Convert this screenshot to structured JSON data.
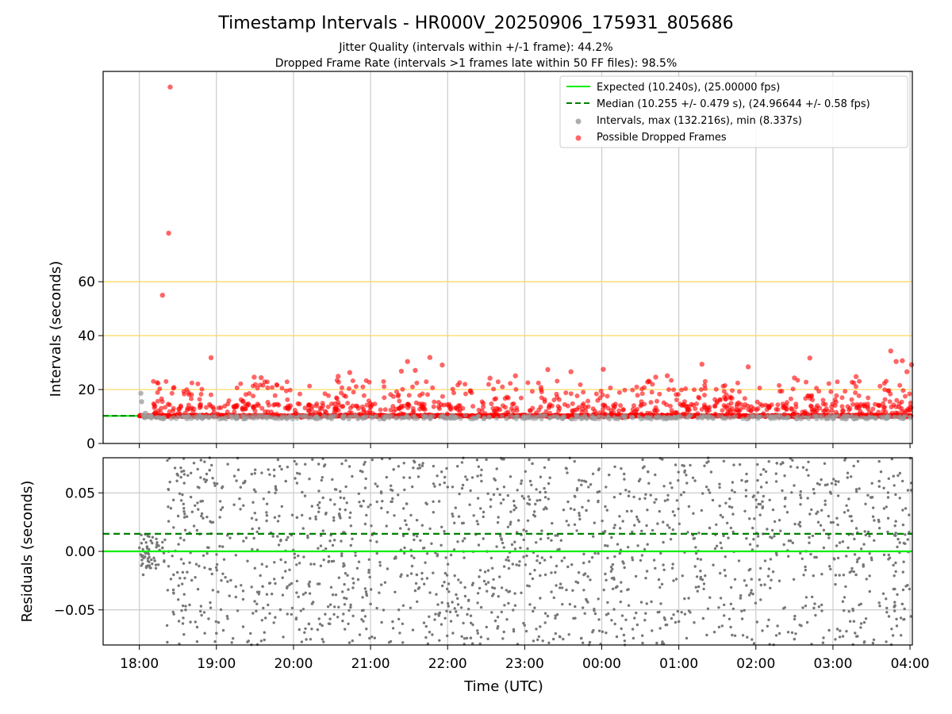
{
  "chart_data": [
    {
      "type": "scatter",
      "title": "Timestamp Intervals - HR000V_20250906_175931_805686",
      "subtitle_lines": [
        "Jitter Quality (intervals within +/-1 frame): 44.2%",
        "Dropped Frame Rate (intervals >1 frames late within 50 FF files): 98.5%"
      ],
      "xlabel": "",
      "ylabel": "Intervals (seconds)",
      "x_unit": "hours since 18:00 UTC (continuing past midnight)",
      "xlim": [
        -0.47,
        10.03
      ],
      "ylim": [
        0,
        138
      ],
      "y_ticks": [
        0,
        20,
        40,
        60
      ],
      "x_ticks": [
        0,
        1,
        2,
        3,
        4,
        5,
        6,
        7,
        8,
        9,
        10
      ],
      "x_tick_labels": [
        "18:00",
        "19:00",
        "20:00",
        "21:00",
        "22:00",
        "23:00",
        "00:00",
        "01:00",
        "02:00",
        "03:00",
        "04:00"
      ],
      "grid": true,
      "threshold_lines": [
        20,
        40,
        60
      ],
      "threshold_color": "#ffd966",
      "legend_position": "top-right",
      "legend": [
        {
          "label": "Expected (10.240s), (25.00000 fps)",
          "kind": "line-solid",
          "color": "#00ee00"
        },
        {
          "label": "Median (10.255 +/- 0.479 s), (24.96644 +/- 0.58 fps)",
          "kind": "line-dashed",
          "color": "#008000"
        },
        {
          "label": "Intervals, max (132.216s), min (8.337s)",
          "kind": "marker",
          "color": "#999999"
        },
        {
          "label": "Possible Dropped Frames",
          "kind": "marker",
          "color": "#ff4444"
        }
      ],
      "series": [
        {
          "name": "Expected (10.240s), (25.00000 fps)",
          "kind": "hline",
          "value": 10.24,
          "color": "#00ee00",
          "x_range": [
            -0.47,
            0.02
          ]
        },
        {
          "name": "Median (10.255 +/- 0.479 s), (24.96644 +/- 0.58 fps)",
          "kind": "hline",
          "value": 10.255,
          "color": "#008000",
          "x_range": [
            -0.47,
            0.02
          ]
        },
        {
          "name": "Intervals, max (132.216s), min (8.337s)",
          "kind": "scatter",
          "color": "#a0a0a0",
          "points": [
            [
              0.02,
              18.6
            ],
            [
              0.03,
              15.5
            ],
            [
              0.05,
              10.6
            ],
            [
              0.08,
              11.2
            ],
            [
              0.15,
              10.3
            ],
            [
              0.6,
              9.8
            ],
            [
              1.2,
              9.6
            ],
            [
              2.3,
              9.9
            ],
            [
              3.5,
              9.5
            ],
            [
              4.1,
              9.7
            ],
            [
              5.0,
              9.4
            ],
            [
              5.9,
              9.3
            ],
            [
              6.4,
              9.6
            ],
            [
              7.3,
              9.5
            ],
            [
              8.2,
              9.8
            ],
            [
              9.0,
              9.4
            ],
            [
              9.7,
              9.9
            ],
            [
              10.0,
              9.6
            ]
          ]
        },
        {
          "name": "Possible Dropped Frames",
          "kind": "scatter",
          "color": "#ff0000",
          "points": [
            [
              0.4,
              132.2
            ],
            [
              0.38,
              78.0
            ],
            [
              0.3,
              55.0
            ],
            [
              0.93,
              31.8
            ],
            [
              1.49,
              24.6
            ],
            [
              1.58,
              24.4
            ],
            [
              2.58,
              24.9
            ],
            [
              2.73,
              26.3
            ],
            [
              3.4,
              26.8
            ],
            [
              3.48,
              30.4
            ],
            [
              3.58,
              27.1
            ],
            [
              3.77,
              31.9
            ],
            [
              3.93,
              29.1
            ],
            [
              4.55,
              24.2
            ],
            [
              4.88,
              25.1
            ],
            [
              5.3,
              27.4
            ],
            [
              5.6,
              26.6
            ],
            [
              6.02,
              27.5
            ],
            [
              6.7,
              24.6
            ],
            [
              6.85,
              25.1
            ],
            [
              7.3,
              29.4
            ],
            [
              7.9,
              28.4
            ],
            [
              8.5,
              24.3
            ],
            [
              8.7,
              31.7
            ],
            [
              9.3,
              24.8
            ],
            [
              9.75,
              34.3
            ],
            [
              9.82,
              30.4
            ],
            [
              9.9,
              30.7
            ],
            [
              9.96,
              26.6
            ],
            [
              10.02,
              29.2
            ]
          ]
        }
      ]
    },
    {
      "type": "scatter",
      "title": "",
      "xlabel": "Time (UTC)",
      "ylabel": "Residuals (seconds)",
      "xlim": [
        -0.47,
        10.03
      ],
      "ylim": [
        -0.08,
        0.08
      ],
      "y_ticks": [
        -0.05,
        0.0,
        0.05
      ],
      "y_tick_labels": [
        "−0.05",
        "0.00",
        "0.05"
      ],
      "x_ticks": [
        0,
        1,
        2,
        3,
        4,
        5,
        6,
        7,
        8,
        9,
        10
      ],
      "x_tick_labels": [
        "18:00",
        "19:00",
        "20:00",
        "21:00",
        "22:00",
        "23:00",
        "00:00",
        "01:00",
        "02:00",
        "03:00",
        "04:00"
      ],
      "grid": true,
      "series": [
        {
          "name": "",
          "kind": "hline",
          "value": 0.0,
          "color": "#00ee00"
        },
        {
          "name": "",
          "kind": "hline",
          "value": 0.015,
          "color": "#008000",
          "dashed": true
        },
        {
          "name": "",
          "kind": "scatter",
          "color": "#777777",
          "points": [
            [
              0.05,
              -0.02
            ],
            [
              0.1,
              0.004
            ],
            [
              0.15,
              0.009
            ],
            [
              0.2,
              -0.008
            ],
            [
              0.3,
              0.003
            ],
            [
              0.5,
              0.065
            ],
            [
              0.6,
              -0.05
            ],
            [
              0.8,
              0.078
            ],
            [
              1.0,
              -0.07
            ],
            [
              1.3,
              0.045
            ],
            [
              1.6,
              -0.03
            ],
            [
              1.9,
              0.06
            ],
            [
              2.2,
              -0.062
            ],
            [
              2.6,
              0.03
            ],
            [
              3.0,
              -0.045
            ],
            [
              3.3,
              0.07
            ],
            [
              3.6,
              -0.02
            ],
            [
              4.0,
              0.055
            ],
            [
              4.3,
              -0.074
            ],
            [
              4.7,
              0.01
            ],
            [
              5.1,
              0.075
            ],
            [
              5.4,
              -0.055
            ],
            [
              5.8,
              0.035
            ],
            [
              6.2,
              -0.03
            ],
            [
              6.6,
              0.068
            ],
            [
              7.0,
              -0.06
            ],
            [
              7.4,
              0.02
            ],
            [
              7.8,
              -0.04
            ],
            [
              8.1,
              0.07
            ],
            [
              8.5,
              -0.075
            ],
            [
              8.9,
              0.04
            ],
            [
              9.3,
              -0.02
            ],
            [
              9.6,
              0.06
            ],
            [
              9.9,
              -0.045
            ]
          ]
        }
      ]
    }
  ]
}
